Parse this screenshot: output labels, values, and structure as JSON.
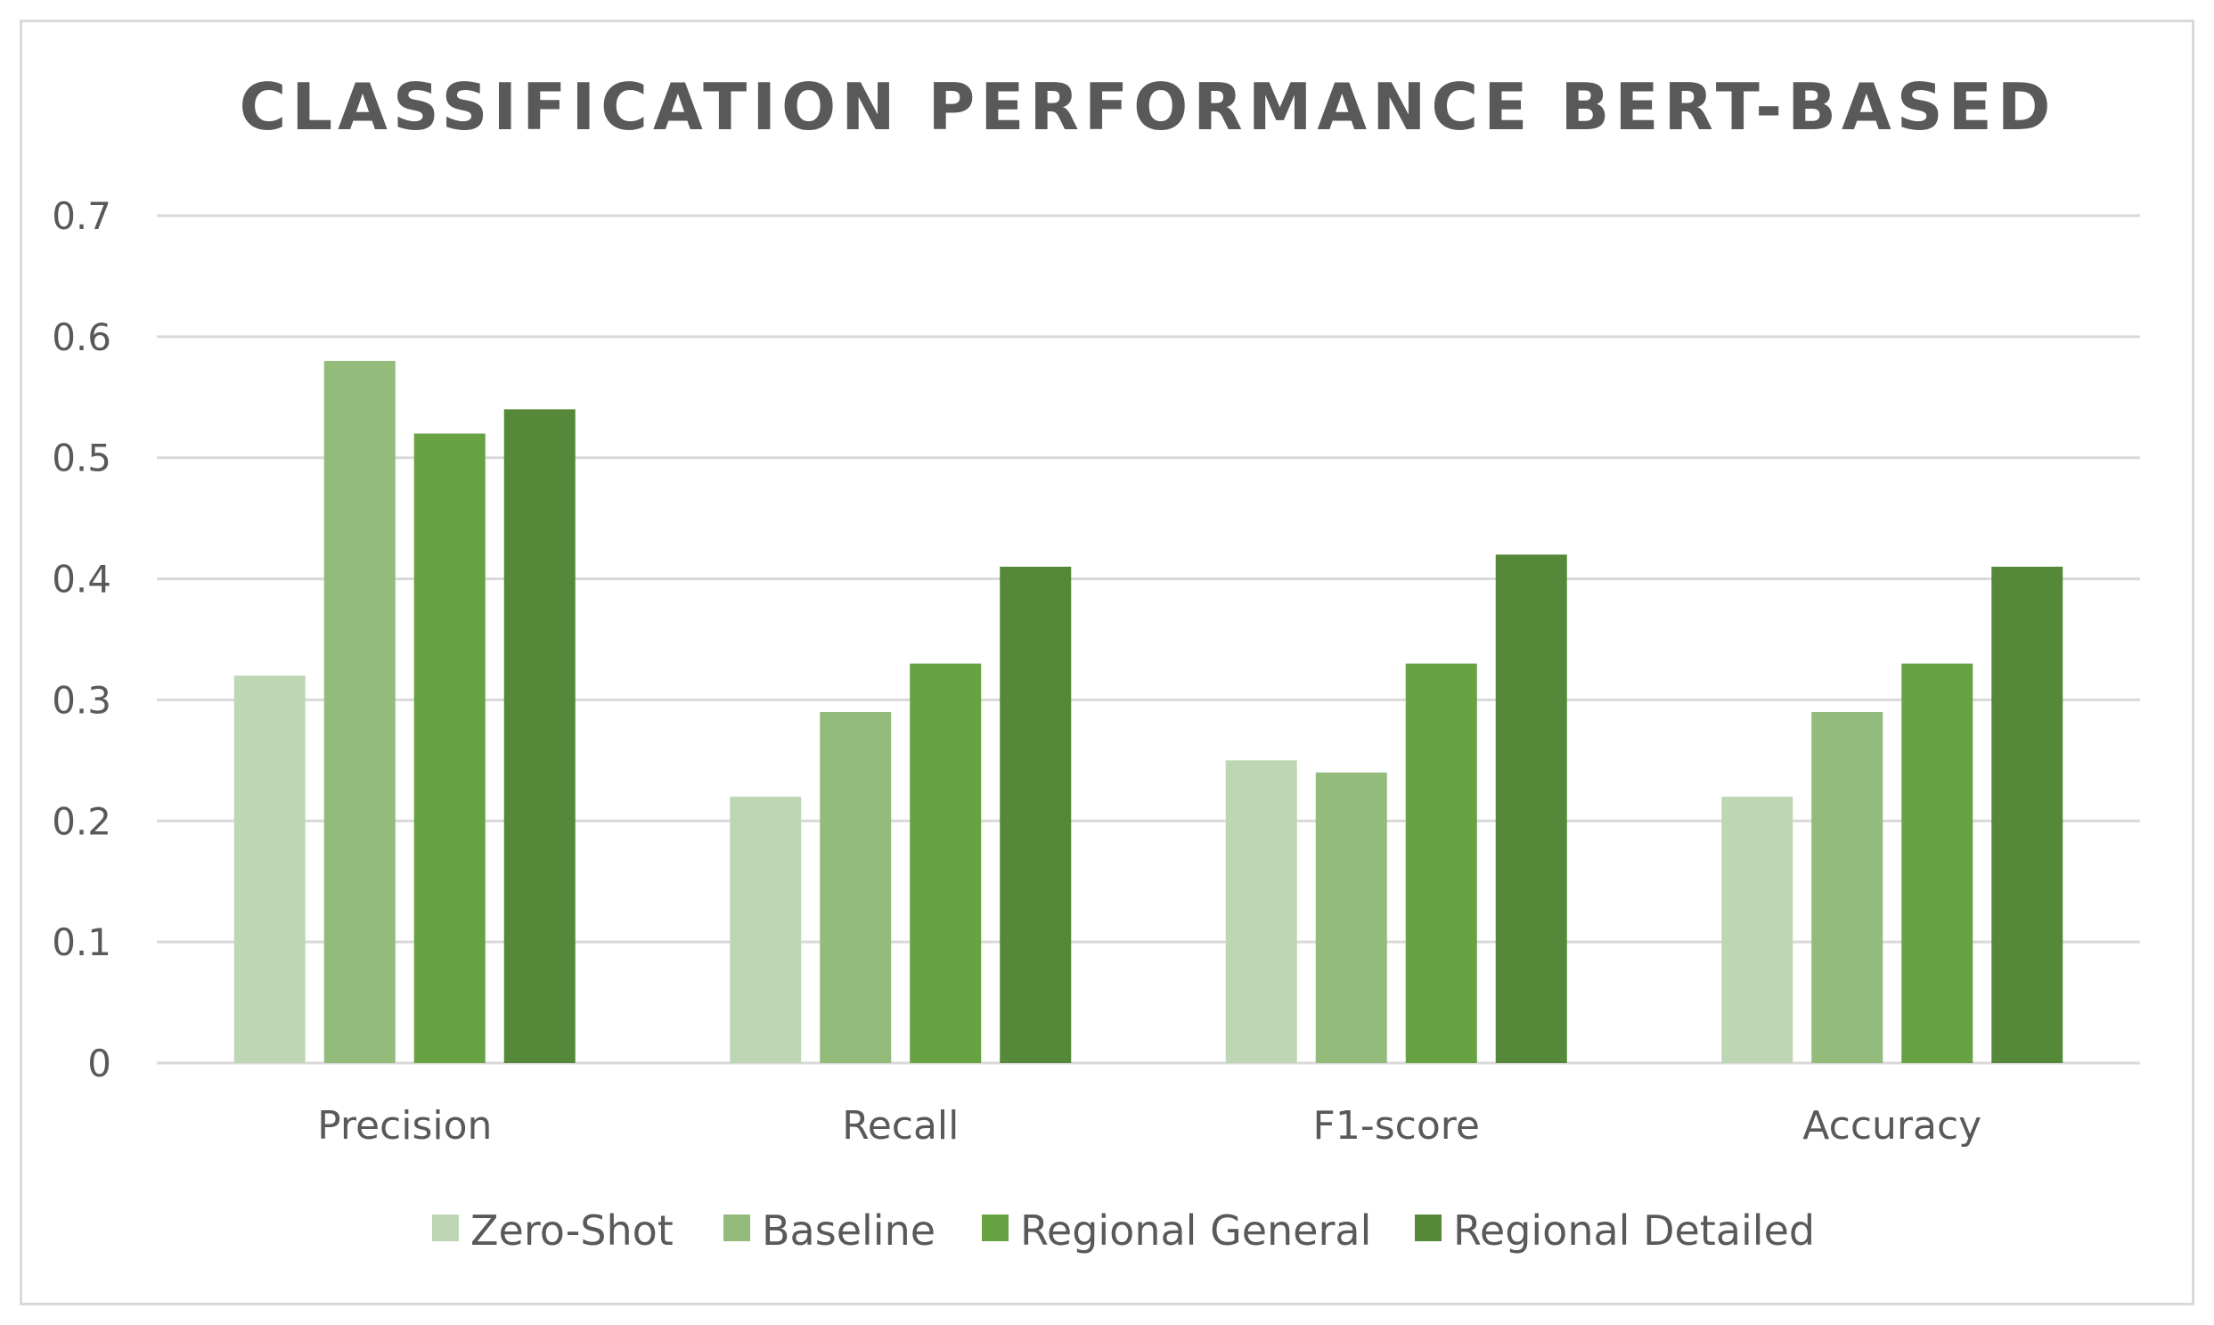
{
  "chart_data": {
    "type": "bar",
    "title": "CLASSIFICATION PERFORMANCE BERT-BASED",
    "xlabel": "",
    "ylabel": "",
    "ylim": [
      0,
      0.7
    ],
    "yticks": [
      0,
      0.1,
      0.2,
      0.3,
      0.4,
      0.5,
      0.6,
      0.7
    ],
    "ytick_labels": [
      "0",
      "0.1",
      "0.2",
      "0.3",
      "0.4",
      "0.5",
      "0.6",
      "0.7"
    ],
    "grid": true,
    "legend_position": "bottom",
    "categories": [
      "Precision",
      "Recall",
      "F1-score",
      "Accuracy"
    ],
    "series": [
      {
        "name": "Zero-Shot",
        "color": "#bfd6b4",
        "values": [
          0.32,
          0.22,
          0.25,
          0.22
        ]
      },
      {
        "name": "Baseline",
        "color": "#93bb7c",
        "values": [
          0.58,
          0.29,
          0.24,
          0.29
        ]
      },
      {
        "name": "Regional General",
        "color": "#67a243",
        "values": [
          0.52,
          0.33,
          0.33,
          0.33
        ]
      },
      {
        "name": "Regional Detailed",
        "color": "#558838",
        "values": [
          0.54,
          0.41,
          0.42,
          0.41
        ]
      }
    ]
  }
}
